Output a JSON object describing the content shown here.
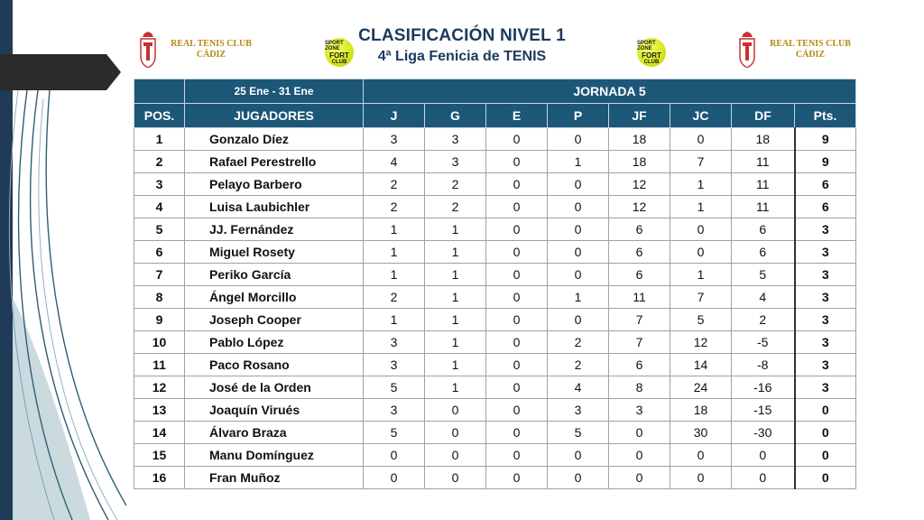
{
  "header": {
    "title": "CLASIFICACIÓN NIVEL 1",
    "subtitle": "4ª Liga Fenicia de TENIS"
  },
  "club": {
    "name_line1": "REAL TENIS CLUB",
    "name_line2": "CÁDIZ",
    "logo": "club-crest"
  },
  "sponsor": {
    "line1": "SPORT ZONE",
    "line2": "FORT",
    "line3": "CLUB"
  },
  "table": {
    "dates": "25 Ene - 31 Ene",
    "round": "JORNADA 5",
    "columns": [
      "POS.",
      "JUGADORES",
      "J",
      "G",
      "E",
      "P",
      "JF",
      "JC",
      "DF",
      "Pts."
    ],
    "rows": [
      [
        "1",
        "Gonzalo Díez",
        "3",
        "3",
        "0",
        "0",
        "18",
        "0",
        "18",
        "9"
      ],
      [
        "2",
        "Rafael Perestrello",
        "4",
        "3",
        "0",
        "1",
        "18",
        "7",
        "11",
        "9"
      ],
      [
        "3",
        "Pelayo Barbero",
        "2",
        "2",
        "0",
        "0",
        "12",
        "1",
        "11",
        "6"
      ],
      [
        "4",
        "Luisa Laubichler",
        "2",
        "2",
        "0",
        "0",
        "12",
        "1",
        "11",
        "6"
      ],
      [
        "5",
        "JJ. Fernández",
        "1",
        "1",
        "0",
        "0",
        "6",
        "0",
        "6",
        "3"
      ],
      [
        "6",
        "Miguel Rosety",
        "1",
        "1",
        "0",
        "0",
        "6",
        "0",
        "6",
        "3"
      ],
      [
        "7",
        "Periko García",
        "1",
        "1",
        "0",
        "0",
        "6",
        "1",
        "5",
        "3"
      ],
      [
        "8",
        "Ángel Morcillo",
        "2",
        "1",
        "0",
        "1",
        "11",
        "7",
        "4",
        "3"
      ],
      [
        "9",
        "Joseph Cooper",
        "1",
        "1",
        "0",
        "0",
        "7",
        "5",
        "2",
        "3"
      ],
      [
        "10",
        "Pablo López",
        "3",
        "1",
        "0",
        "2",
        "7",
        "12",
        "-5",
        "3"
      ],
      [
        "11",
        "Paco Rosano",
        "3",
        "1",
        "0",
        "2",
        "6",
        "14",
        "-8",
        "3"
      ],
      [
        "12",
        "José de la Orden",
        "5",
        "1",
        "0",
        "4",
        "8",
        "24",
        "-16",
        "3"
      ],
      [
        "13",
        "Joaquín Virués",
        "3",
        "0",
        "0",
        "3",
        "3",
        "18",
        "-15",
        "0"
      ],
      [
        "14",
        "Álvaro Braza",
        "5",
        "0",
        "0",
        "5",
        "0",
        "30",
        "-30",
        "0"
      ],
      [
        "15",
        "Manu Domínguez",
        "0",
        "0",
        "0",
        "0",
        "0",
        "0",
        "0",
        "0"
      ],
      [
        "16",
        "Fran Muñoz",
        "0",
        "0",
        "0",
        "0",
        "0",
        "0",
        "0",
        "0"
      ]
    ]
  },
  "colors": {
    "header_bg": "#1d5778",
    "title": "#1b3a5c",
    "club_gold": "#b58a12",
    "deco_dark": "#1f3b57"
  }
}
